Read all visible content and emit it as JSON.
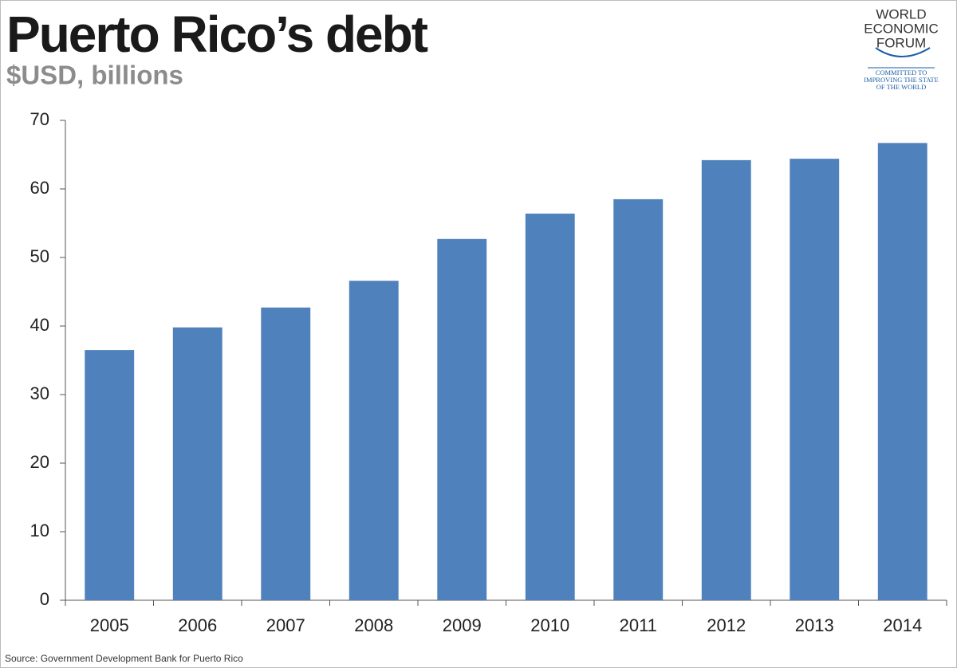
{
  "chart_data": {
    "type": "bar",
    "title": "Puerto Rico’s debt",
    "subtitle": "$USD, billions",
    "categories": [
      "2005",
      "2006",
      "2007",
      "2008",
      "2009",
      "2010",
      "2011",
      "2012",
      "2013",
      "2014"
    ],
    "values": [
      36.5,
      39.8,
      42.7,
      46.6,
      52.7,
      56.4,
      58.5,
      64.2,
      64.4,
      66.7
    ],
    "color": "#4f81bd",
    "ylim": [
      0,
      70
    ],
    "yticks": [
      0,
      10,
      20,
      30,
      40,
      50,
      60,
      70
    ],
    "grid": false,
    "source": "Source: Government Development Bank for Puerto Rico"
  },
  "logo": {
    "name": [
      "WORLD",
      "ECONOMIC",
      "FORUM"
    ],
    "tagline": [
      "COMMITTED TO",
      "IMPROVING THE STATE",
      "OF THE WORLD"
    ]
  }
}
